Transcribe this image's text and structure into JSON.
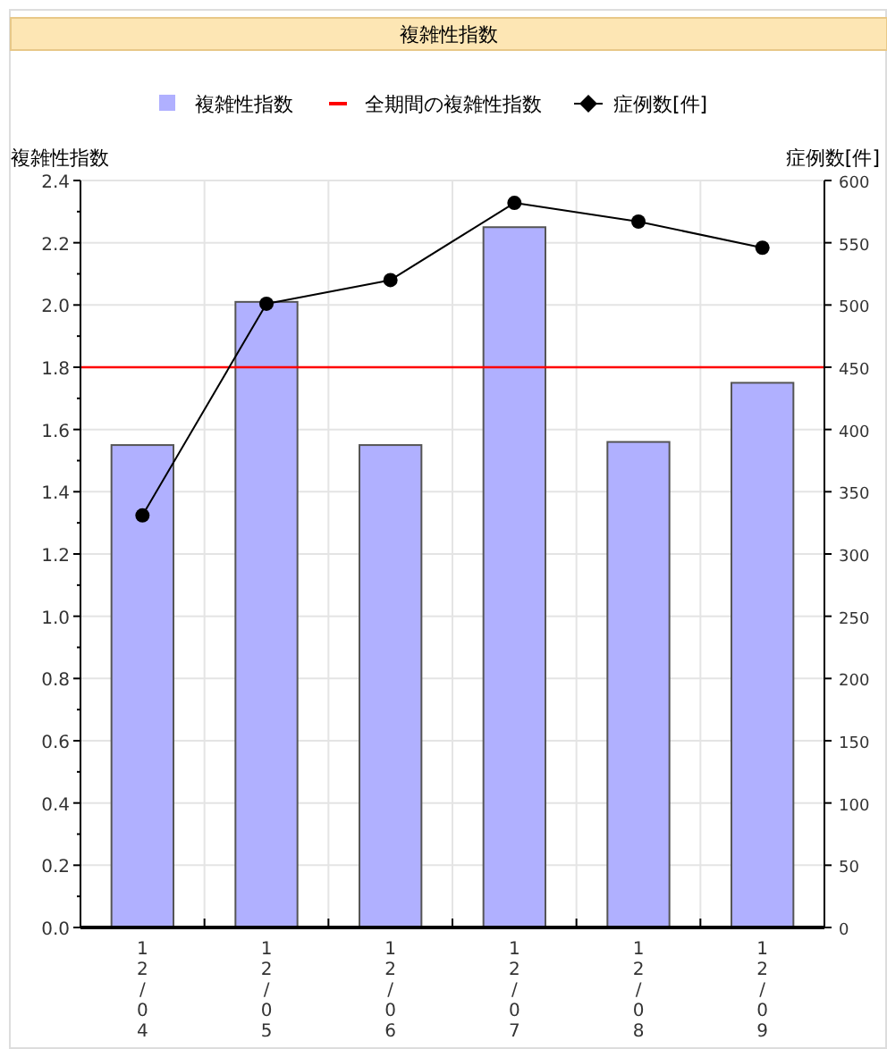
{
  "chart_data": {
    "type": "bar",
    "title": "複雑性指数",
    "ylabel": "複雑性指数",
    "y2label": "症例数[件]",
    "categories": [
      "12/04",
      "12/05",
      "12/06",
      "12/07",
      "12/08",
      "12/09"
    ],
    "series": [
      {
        "name": "複雑性指数",
        "color": "#b0b0ff",
        "values": [
          1.55,
          2.01,
          1.55,
          2.25,
          1.56,
          1.75
        ]
      },
      {
        "name": "症例数[件]",
        "type": "line",
        "axis": "y2",
        "color": "#000000",
        "marker": "circle",
        "values": [
          331,
          501,
          520,
          582,
          567,
          546
        ]
      }
    ],
    "ref_lines": [
      {
        "axis": "y",
        "value": 1.8,
        "label": "全期間の複雑性指数",
        "color": "#ff0000"
      }
    ],
    "ylim": [
      0,
      2.4
    ],
    "yticks": [
      {
        "value": 0,
        "label": "0.0"
      },
      0.2,
      0.4,
      0.6,
      0.8,
      {
        "value": 1,
        "label": "1.0"
      },
      1.2,
      1.4,
      1.6,
      1.8,
      {
        "value": 2,
        "label": "2.0"
      },
      2.2,
      2.4
    ],
    "y2lim": [
      0,
      600
    ],
    "y2ticks": [
      0,
      50,
      100,
      150,
      200,
      250,
      300,
      350,
      400,
      450,
      500,
      550,
      600
    ],
    "grid": true,
    "legend": "top"
  }
}
